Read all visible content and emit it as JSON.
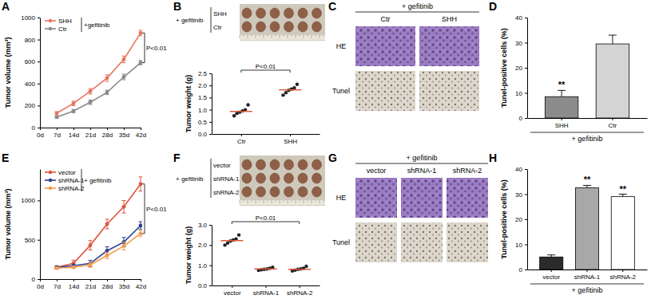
{
  "panel_labels": [
    "A",
    "B",
    "C",
    "D",
    "E",
    "F",
    "G",
    "H"
  ],
  "image_panels": [
    {
      "caption": "+ gefitinib",
      "rows": [
        "SHH",
        "Ctr"
      ]
    },
    {
      "caption": "+ gefitinib",
      "columns": [
        "Ctr",
        "SHH"
      ],
      "rows": [
        "HE",
        "Tunel"
      ]
    },
    {
      "caption": "+ gefitinib",
      "rows": [
        "vector",
        "shRNA-1",
        "shRNA-2"
      ]
    },
    {
      "caption": "+ gefitinib",
      "columns": [
        "vector",
        "shRNA-1",
        "shRNA-2"
      ],
      "rows": [
        "HE",
        "Tunel"
      ]
    }
  ],
  "chart_data": [
    {
      "type": "line",
      "ylabel": "Tumor volume (mm³)",
      "categories": [
        "0d",
        "7d",
        "14d",
        "21d",
        "28d",
        "35d",
        "42d"
      ],
      "series": [
        {
          "name": "SHH",
          "color": "#e8735f",
          "marker": "circle",
          "values": [
            null,
            130,
            220,
            330,
            450,
            620,
            860
          ],
          "errors": [
            null,
            15,
            20,
            25,
            30,
            30,
            25
          ]
        },
        {
          "name": "Ctr",
          "color": "#8a8a8a",
          "marker": "circle",
          "values": [
            null,
            95,
            150,
            230,
            320,
            460,
            590
          ],
          "errors": [
            null,
            10,
            15,
            20,
            20,
            25,
            20
          ]
        }
      ],
      "ylim": [
        0,
        1000
      ],
      "yticks": [
        0,
        200,
        400,
        600,
        800,
        1000
      ],
      "annotations": [
        "+gefitinib",
        "P<0.01"
      ]
    },
    {
      "type": "dot",
      "ylabel": "Tumor weight (g)",
      "categories": [
        "Ctr",
        "SHH"
      ],
      "values": [
        [
          0.75,
          0.85,
          0.9,
          0.95,
          1.0,
          1.2
        ],
        [
          1.6,
          1.7,
          1.8,
          1.85,
          1.9,
          2.05
        ]
      ],
      "means": [
        0.93,
        1.82
      ],
      "color": "#e05a3a",
      "ylim": [
        0,
        2.5
      ],
      "yticks": [
        {
          "value": 0,
          "label": "0.0"
        },
        0.5,
        {
          "value": 1,
          "label": "1.0"
        },
        1.5,
        {
          "value": 2,
          "label": "2.0"
        },
        2.5
      ],
      "annotations": [
        "P<0.01"
      ]
    },
    {
      "type": "bar",
      "ylabel": "Tunel-positive cells (%)",
      "xlabel": "+ gefitinib",
      "categories": [
        "SHH",
        "Ctr"
      ],
      "values": [
        8.5,
        29.5
      ],
      "errors": [
        2.5,
        3.5
      ],
      "colors": [
        "#8c8c8c",
        "#d4d4d4"
      ],
      "ylim": [
        0,
        40
      ],
      "yticks": [
        0,
        10,
        20,
        30,
        40
      ],
      "annotations": [
        {
          "text": "**",
          "category": "SHH"
        }
      ]
    },
    {
      "type": "line",
      "ylabel": "Tumor volume (mm³)",
      "categories": [
        "0d",
        "7d",
        "14d",
        "21d",
        "28d",
        "35d",
        "42d"
      ],
      "series": [
        {
          "name": "vector",
          "color": "#e0533d",
          "marker": "circle",
          "values": [
            null,
            150,
            200,
            430,
            700,
            920,
            1210
          ],
          "errors": [
            null,
            20,
            40,
            60,
            60,
            80,
            90
          ]
        },
        {
          "name": "shRNA-1",
          "color": "#2e3f8f",
          "marker": "circle",
          "values": [
            null,
            150,
            170,
            200,
            360,
            470,
            680
          ],
          "errors": [
            null,
            15,
            20,
            40,
            50,
            60,
            50
          ]
        },
        {
          "name": "shRNA-2",
          "color": "#f39c4a",
          "marker": "circle",
          "values": [
            null,
            140,
            150,
            180,
            300,
            420,
            580
          ],
          "errors": [
            null,
            15,
            15,
            30,
            40,
            50,
            40
          ]
        }
      ],
      "ylim": [
        0,
        1400
      ],
      "yticks": [
        0,
        500,
        1000
      ],
      "annotations": [
        "+ gefitinib",
        "P<0.01"
      ]
    },
    {
      "type": "dot",
      "ylabel": "Tumor weight (g)",
      "categories": [
        "vector",
        "shRNA-1",
        "shRNA-2"
      ],
      "values": [
        [
          2.0,
          2.1,
          2.2,
          2.25,
          2.3,
          2.5
        ],
        [
          0.75,
          0.78,
          0.8,
          0.82,
          0.85,
          0.9
        ],
        [
          0.72,
          0.76,
          0.8,
          0.82,
          0.85,
          0.95
        ]
      ],
      "means": [
        2.22,
        0.82,
        0.8
      ],
      "color": "#e05a3a",
      "ylim": [
        0,
        3
      ],
      "yticks": [
        {
          "value": 0,
          "label": "0.0"
        },
        {
          "value": 1,
          "label": "1.0"
        },
        {
          "value": 2,
          "label": "2.0"
        },
        {
          "value": 3,
          "label": "3.0"
        }
      ],
      "annotations": [
        "P<0.01"
      ]
    },
    {
      "type": "bar",
      "ylabel": "Tunel-positive cells (%)",
      "xlabel": "+ gefitinib",
      "categories": [
        "vector",
        "shRNA-1",
        "shRNA-2"
      ],
      "values": [
        5,
        32.5,
        29
      ],
      "errors": [
        0.8,
        1,
        1
      ],
      "colors": [
        "#2b2b2b",
        "#a8a8a8",
        "#ffffff"
      ],
      "ylim": [
        0,
        40
      ],
      "yticks": [
        0,
        10,
        20,
        30,
        40
      ],
      "annotations": [
        {
          "text": "**",
          "category": "shRNA-1"
        },
        {
          "text": "**",
          "category": "shRNA-2"
        }
      ]
    }
  ]
}
